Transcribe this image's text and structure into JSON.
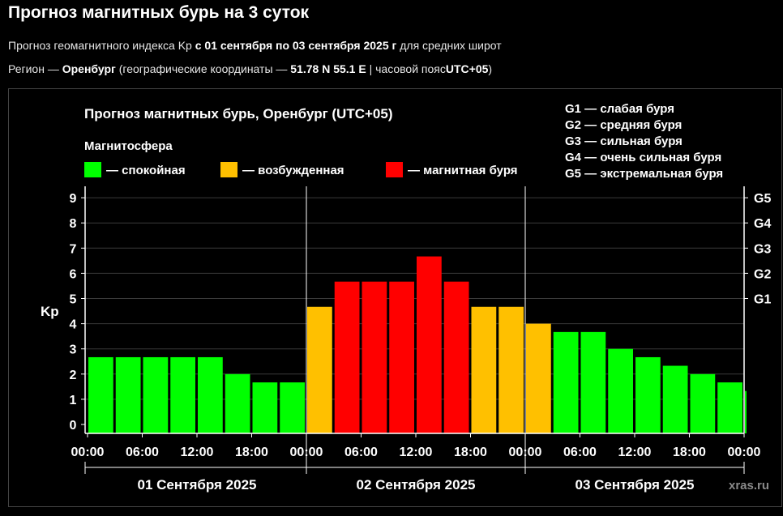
{
  "header": {
    "title": "Прогноз магнитных бурь на 3 суток",
    "line1_pre": "Прогноз геомагнитного индекса Kp",
    "line1_period": "с 01 сентября по 03 сентября 2025 г",
    "line1_post": "для средних широт",
    "line2_pre": "Регион —",
    "line2_region": "Оренбург",
    "line2_mid": "(географические координаты —",
    "line2_coords": "51.78 N 55.1 E",
    "line2_sep": "| часовой пояс",
    "line2_tz": "UTC+05",
    "line2_end": ")"
  },
  "chart_data": {
    "type": "bar",
    "title": "Прогноз магнитных бурь, Оренбург (UTC+05)",
    "legend_title": "Магнитосфера",
    "legend": [
      {
        "label": "— спокойная",
        "color": "#00ff00"
      },
      {
        "label": "— возбужденная",
        "color": "#ffc000"
      },
      {
        "label": "— магнитная буря",
        "color": "#ff0000"
      }
    ],
    "g_scale_legend": [
      "G1 — слабая буря",
      "G2 — средняя буря",
      "G3 — сильная буря",
      "G4 — очень сильная буря",
      "G5 — экстремальная буря"
    ],
    "ylabel": "Kp",
    "ylim": [
      0,
      9
    ],
    "y_ticks": [
      0,
      1,
      2,
      3,
      4,
      5,
      6,
      7,
      8,
      9
    ],
    "y2_ticks": [
      {
        "value": 5,
        "label": "G1"
      },
      {
        "value": 6,
        "label": "G2"
      },
      {
        "value": 7,
        "label": "G3"
      },
      {
        "value": 8,
        "label": "G4"
      },
      {
        "value": 9,
        "label": "G5"
      }
    ],
    "x_hours_range": [
      0,
      72
    ],
    "x_tick_hours": [
      0,
      6,
      12,
      18,
      24,
      30,
      36,
      42,
      48,
      54,
      60,
      66,
      72
    ],
    "x_tick_labels": [
      "00:00",
      "06:00",
      "12:00",
      "18:00",
      "00:00",
      "06:00",
      "12:00",
      "18:00",
      "00:00",
      "06:00",
      "12:00",
      "18:00",
      "00:00"
    ],
    "day_labels": [
      "01 Сентября 2025",
      "02 Сентября 2025",
      "03 Сентября 2025"
    ],
    "day_dividers_hours": [
      24,
      48
    ],
    "grid": true,
    "bar_interval_hours": 3,
    "values": [
      2.67,
      2.67,
      2.67,
      2.67,
      2.67,
      2.0,
      1.67,
      1.67,
      4.67,
      5.67,
      5.67,
      5.67,
      6.67,
      5.67,
      4.67,
      4.67,
      4.0,
      3.67,
      3.67,
      3.0,
      2.67,
      2.33,
      2.0,
      1.67,
      1.33
    ],
    "levels": [
      "quiet",
      "quiet",
      "quiet",
      "quiet",
      "quiet",
      "quiet",
      "quiet",
      "quiet",
      "active",
      "storm",
      "storm",
      "storm",
      "storm",
      "storm",
      "active",
      "active",
      "active",
      "quiet",
      "quiet",
      "quiet",
      "quiet",
      "quiet",
      "quiet",
      "quiet",
      "quiet"
    ],
    "level_colors": {
      "quiet": "#00ff00",
      "active": "#ffc000",
      "storm": "#ff0000"
    }
  },
  "watermark": "xras.ru"
}
